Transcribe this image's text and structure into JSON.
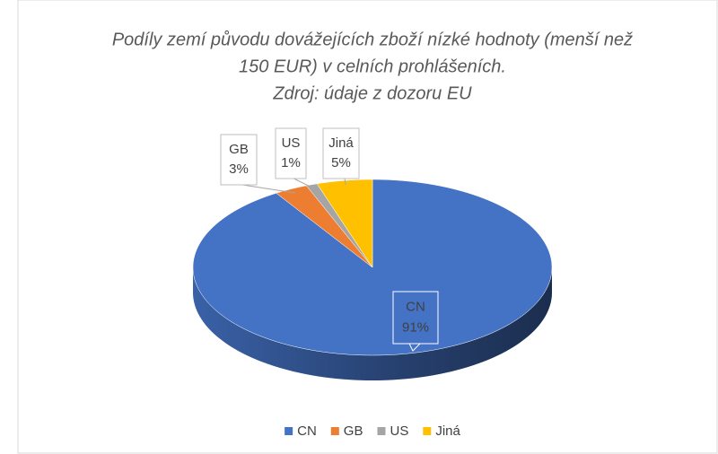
{
  "chart_data": {
    "type": "pie3d",
    "title": [
      "Podíly zemí původu dovážejících zboží nízké hodnoty (menší než",
      "150 EUR) v celních prohlášeních."
    ],
    "subtitle": "Zdroj: údaje z dozoru EU",
    "categories": [
      "CN",
      "GB",
      "US",
      "Jiná"
    ],
    "values": [
      91,
      3,
      1,
      5
    ],
    "value_labels": [
      "91%",
      "3%",
      "1%",
      "5%"
    ],
    "colors": [
      "#4472c4",
      "#ed7d31",
      "#a5a5a5",
      "#ffc000"
    ],
    "legend": "bottom"
  }
}
